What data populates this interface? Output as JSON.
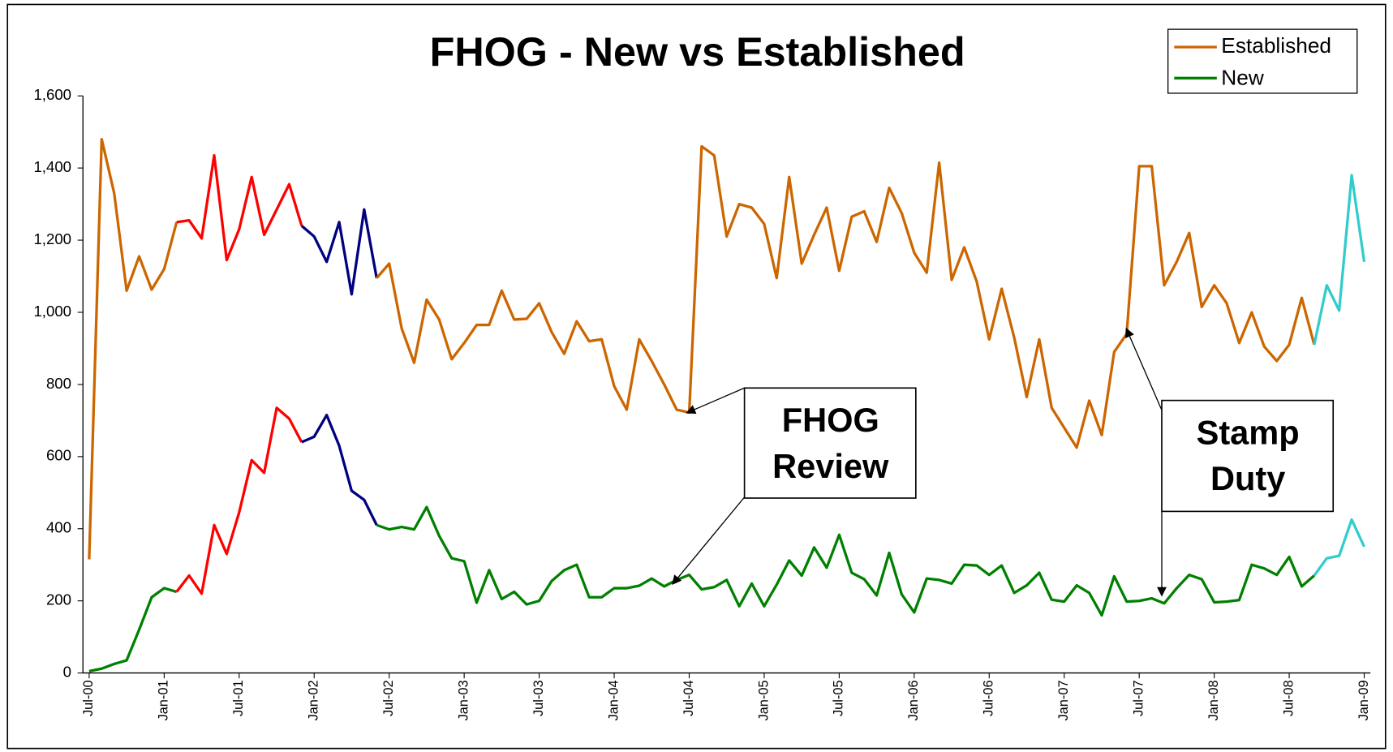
{
  "chart_data": {
    "type": "line",
    "title": "FHOG - New vs Established",
    "categories": [
      "Jul-00",
      null,
      null,
      null,
      null,
      null,
      "Jan-01",
      null,
      null,
      null,
      null,
      null,
      "Jul-01",
      null,
      null,
      null,
      null,
      null,
      "Jan-02",
      null,
      null,
      null,
      null,
      null,
      "Jul-02",
      null,
      null,
      null,
      null,
      null,
      "Jan-03",
      null,
      null,
      null,
      null,
      null,
      "Jul-03",
      null,
      null,
      null,
      null,
      null,
      "Jan-04",
      null,
      null,
      null,
      null,
      null,
      "Jul-04",
      null,
      null,
      null,
      null,
      null,
      "Jan-05",
      null,
      null,
      null,
      null,
      null,
      "Jul-05",
      null,
      null,
      null,
      null,
      null,
      "Jan-06",
      null,
      null,
      null,
      null,
      null,
      "Jul-06",
      null,
      null,
      null,
      null,
      null,
      "Jan-07",
      null,
      null,
      null,
      null,
      null,
      "Jul-07",
      null,
      null,
      null,
      null,
      null,
      "Jan-08",
      null,
      null,
      null,
      null,
      null,
      "Jul-08",
      null,
      null,
      null,
      null,
      null,
      "Jan-09"
    ],
    "series": [
      {
        "name": "Established",
        "color": "#cc6600",
        "values": [
          315,
          1480,
          1330,
          1060,
          1155,
          1063,
          1120,
          1250,
          1255,
          1205,
          1435,
          1145,
          1230,
          1375,
          1215,
          1285,
          1355,
          1240,
          1210,
          1140,
          1250,
          1050,
          1285,
          1095,
          1135,
          955,
          860,
          1035,
          980,
          870,
          915,
          965,
          965,
          1060,
          980,
          982,
          1025,
          945,
          885,
          975,
          920,
          925,
          795,
          730,
          925,
          865,
          800,
          730,
          722,
          1460,
          1435,
          1210,
          1300,
          1290,
          1245,
          1095,
          1375,
          1135,
          1215,
          1290,
          1115,
          1265,
          1280,
          1195,
          1345,
          1275,
          1165,
          1110,
          1415,
          1090,
          1180,
          1085,
          925,
          1065,
          930,
          765,
          925,
          735,
          680,
          625,
          755,
          660,
          890,
          940,
          1405,
          1405,
          1075,
          1140,
          1220,
          1015,
          1075,
          1025,
          915,
          1000,
          905,
          865,
          910,
          1040,
          910,
          1075,
          1005,
          1380,
          1140
        ],
        "color_runs": [
          {
            "color": "#ff0000",
            "start": 7,
            "end": 17
          },
          {
            "color": "#000080",
            "start": 17,
            "end": 23
          },
          {
            "color": "#33cccc",
            "start": 98,
            "end": 102
          }
        ]
      },
      {
        "name": "New",
        "color": "#008000",
        "values": [
          5,
          12,
          25,
          35,
          120,
          210,
          235,
          225,
          270,
          220,
          410,
          330,
          445,
          590,
          555,
          735,
          705,
          640,
          655,
          715,
          630,
          505,
          480,
          410,
          398,
          405,
          398,
          460,
          380,
          318,
          310,
          195,
          285,
          205,
          225,
          190,
          200,
          255,
          285,
          300,
          210,
          210,
          235,
          235,
          242,
          262,
          240,
          258,
          272,
          232,
          238,
          258,
          185,
          248,
          185,
          245,
          312,
          270,
          348,
          292,
          383,
          278,
          260,
          215,
          333,
          218,
          168,
          262,
          258,
          248,
          300,
          298,
          272,
          298,
          222,
          243,
          278,
          203,
          198,
          243,
          222,
          160,
          268,
          198,
          200,
          207,
          193,
          235,
          272,
          260,
          196,
          198,
          202,
          300,
          290,
          272,
          322,
          240,
          270,
          318,
          325,
          425,
          350
        ],
        "color_runs": [
          {
            "color": "#ff0000",
            "start": 7,
            "end": 17
          },
          {
            "color": "#000080",
            "start": 17,
            "end": 23
          },
          {
            "color": "#33cccc",
            "start": 98,
            "end": 102
          }
        ]
      }
    ],
    "ylim": [
      0,
      1600
    ],
    "yticks": [
      0,
      200,
      400,
      600,
      800,
      {
        "value": 1000,
        "label": "1,000"
      },
      {
        "value": 1200,
        "label": "1,200"
      },
      {
        "value": 1400,
        "label": "1,400"
      },
      {
        "value": 1600,
        "label": "1,600"
      }
    ],
    "legend": "top-right",
    "annotations": [
      {
        "lines": [
          "FHOG",
          "Review"
        ]
      },
      {
        "lines": [
          "Stamp",
          "Duty"
        ]
      }
    ]
  }
}
